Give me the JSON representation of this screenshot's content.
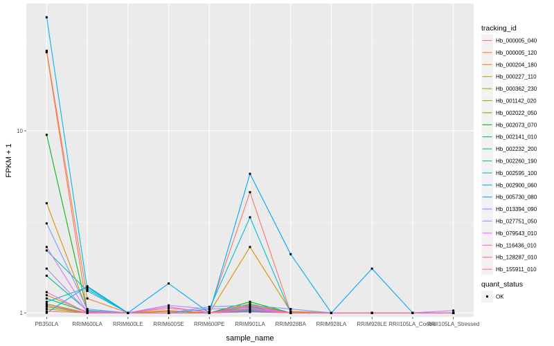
{
  "chart_data": {
    "type": "line",
    "xlabel": "sample_name",
    "ylabel": "FPKM + 1",
    "y_scale": "log10",
    "ylim": [
      0.95,
      50
    ],
    "y_ticks": [
      {
        "value": 1,
        "label": "1"
      },
      {
        "value": 10,
        "label": "10"
      }
    ],
    "grid": true,
    "legend_position": "right",
    "categories": [
      "PB350LA",
      "RRIM600LA",
      "RRIM600LE",
      "RRIM600SE",
      "RRIM600PE",
      "RRIM901LA",
      "RRIM928BA",
      "RRIM928LA",
      "RRIM928LE",
      "RRII105LA_Control",
      "RRII105LA_Stressed"
    ],
    "color_legend_title": "tracking_id",
    "series": [
      {
        "name": "Hb_000005_040",
        "color": "#F8766D",
        "values": [
          27.0,
          1.02,
          1.0,
          1.06,
          1.02,
          4.6,
          1.01,
          1.0,
          1.0,
          1.0,
          1.0
        ]
      },
      {
        "name": "Hb_000005_120",
        "color": "#EC8239",
        "values": [
          27.5,
          1.2,
          1.0,
          1.02,
          1.0,
          1.1,
          1.0,
          1.0,
          1.0,
          1.0,
          1.0
        ]
      },
      {
        "name": "Hb_000204_180",
        "color": "#DB8E00",
        "values": [
          4.0,
          1.03,
          1.0,
          1.03,
          1.0,
          2.3,
          1.02,
          1.0,
          1.0,
          1.0,
          1.0
        ]
      },
      {
        "name": "Hb_000227_110",
        "color": "#C79800",
        "values": [
          1.25,
          1.01,
          1.0,
          1.0,
          1.0,
          1.02,
          1.0,
          1.0,
          1.0,
          1.0,
          1.0
        ]
      },
      {
        "name": "Hb_000362_230",
        "color": "#AFA100",
        "values": [
          1.05,
          1.0,
          1.0,
          1.0,
          1.0,
          1.04,
          1.0,
          1.0,
          1.0,
          1.0,
          1.0
        ]
      },
      {
        "name": "Hb_001142_020",
        "color": "#96A908",
        "values": [
          1.12,
          1.0,
          1.0,
          1.0,
          1.0,
          1.06,
          1.0,
          1.0,
          1.0,
          1.0,
          1.0
        ]
      },
      {
        "name": "Hb_002022_050",
        "color": "#72B000",
        "values": [
          1.08,
          1.0,
          1.0,
          1.0,
          1.0,
          1.12,
          1.0,
          1.0,
          1.0,
          1.0,
          1.0
        ]
      },
      {
        "name": "Hb_002073_070",
        "color": "#00B813",
        "values": [
          9.5,
          1.02,
          1.0,
          1.0,
          1.0,
          1.15,
          1.0,
          1.0,
          1.0,
          1.0,
          1.0
        ]
      },
      {
        "name": "Hb_002141_010",
        "color": "#00BD5C",
        "values": [
          1.2,
          1.01,
          1.0,
          1.0,
          1.0,
          1.08,
          1.0,
          1.0,
          1.0,
          1.0,
          1.0
        ]
      },
      {
        "name": "Hb_002232_200",
        "color": "#00C08D",
        "values": [
          1.6,
          1.03,
          1.0,
          1.0,
          1.0,
          1.05,
          1.0,
          1.0,
          1.0,
          1.0,
          1.0
        ]
      },
      {
        "name": "Hb_002260_190",
        "color": "#00C0B4",
        "values": [
          2.2,
          1.32,
          1.0,
          1.0,
          1.0,
          1.03,
          1.0,
          1.0,
          1.0,
          1.0,
          1.0
        ]
      },
      {
        "name": "Hb_002595_100",
        "color": "#00BDD4",
        "values": [
          1.15,
          1.38,
          1.0,
          1.0,
          1.05,
          3.35,
          1.0,
          1.0,
          1.0,
          1.0,
          1.0
        ]
      },
      {
        "name": "Hb_002900_060",
        "color": "#00B5EE",
        "values": [
          42.0,
          1.35,
          1.0,
          1.0,
          1.0,
          1.02,
          1.0,
          1.0,
          1.0,
          1.0,
          1.0
        ]
      },
      {
        "name": "Hb_005730_080",
        "color": "#00A7FF",
        "values": [
          1.0,
          1.4,
          1.0,
          1.45,
          1.0,
          5.8,
          2.1,
          1.0,
          1.75,
          1.0,
          1.0
        ]
      },
      {
        "name": "Hb_013394_090",
        "color": "#7F96FF",
        "values": [
          3.1,
          1.05,
          1.0,
          1.0,
          1.08,
          1.1,
          1.05,
          1.0,
          1.0,
          1.0,
          1.0
        ]
      },
      {
        "name": "Hb_027751_050",
        "color": "#BC81FF",
        "values": [
          1.75,
          1.02,
          1.0,
          1.1,
          1.05,
          1.07,
          1.0,
          1.0,
          1.0,
          1.0,
          1.03
        ]
      },
      {
        "name": "Hb_079543_010",
        "color": "#E26EF7",
        "values": [
          2.3,
          1.01,
          1.0,
          1.08,
          1.0,
          1.05,
          1.0,
          1.0,
          1.0,
          1.0,
          1.0
        ]
      },
      {
        "name": "Hb_116436_010",
        "color": "#F863DF",
        "values": [
          1.3,
          1.0,
          1.0,
          1.0,
          1.0,
          1.09,
          1.0,
          1.0,
          1.0,
          1.0,
          1.0
        ]
      },
      {
        "name": "Hb_128287_010",
        "color": "#FF62BF",
        "values": [
          1.1,
          1.0,
          1.0,
          1.0,
          1.0,
          1.04,
          1.0,
          1.0,
          1.0,
          1.0,
          1.0
        ]
      },
      {
        "name": "Hb_155911_010",
        "color": "#FF6A9A",
        "values": [
          1.02,
          1.0,
          1.0,
          1.0,
          1.0,
          1.01,
          1.0,
          1.0,
          1.0,
          1.0,
          1.0
        ]
      }
    ],
    "shape_legend_title": "quant_status",
    "shape_legend_items": [
      {
        "label": "OK",
        "shape": "square",
        "color": "#000000"
      }
    ]
  }
}
